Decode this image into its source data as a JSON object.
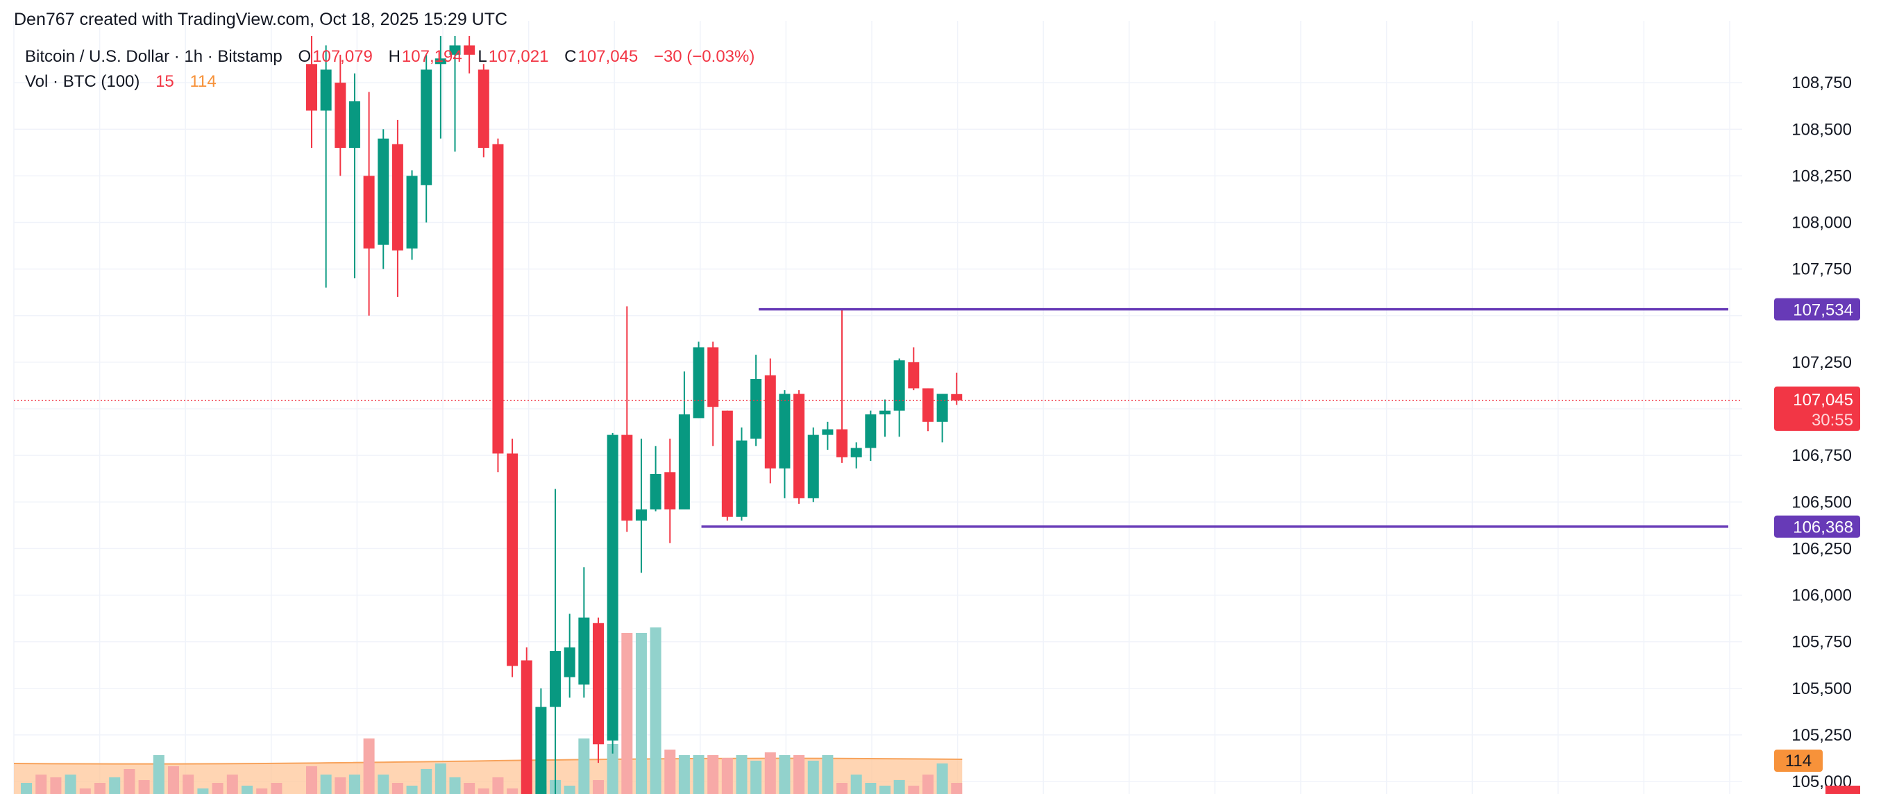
{
  "header": {
    "credit": "Den767 created with TradingView.com, Oct 18, 2025 15:29 UTC"
  },
  "legend": {
    "symbol": "Bitcoin / U.S. Dollar · 1h · Bitstamp",
    "o_label": "O",
    "o_value": "107,079",
    "h_label": "H",
    "h_value": "107,194",
    "l_label": "L",
    "l_value": "107,021",
    "c_label": "C",
    "c_value": "107,045",
    "change": "−30 (−0.03%)",
    "vol_label": "Vol · BTC (100)",
    "vol_value": "15",
    "vol_ma": "114"
  },
  "colors": {
    "up": "#089981",
    "down": "#f23645",
    "up_vol": "#92d2cc",
    "down_vol": "#f7a9a7",
    "vol_ma_area": "#ffc79a",
    "level_line": "#673ab7",
    "grid": "#f0f3fa"
  },
  "chart_data": {
    "type": "candlestick",
    "symbol": "BTCUSD",
    "timeframe": "1h",
    "exchange": "Bitstamp",
    "y_axis": {
      "ticks": [
        105000,
        105250,
        105500,
        105750,
        106000,
        106250,
        106500,
        106750,
        107000,
        107250,
        107500,
        107750,
        108000,
        108250,
        108500,
        108750
      ],
      "tick_labels": [
        "105,000",
        "105,250",
        "105,500",
        "105,750",
        "106,000",
        "106,250",
        "106,500",
        "106,750",
        "",
        "107,250",
        "",
        "107,750",
        "108,000",
        "108,250",
        "108,500",
        "108,750"
      ],
      "range": [
        104950,
        109000
      ]
    },
    "last_price": {
      "value": 107045,
      "label": "107,045",
      "countdown": "30:55"
    },
    "levels": [
      {
        "value": 107534,
        "label": "107,534",
        "from_bar": 31
      },
      {
        "value": 106368,
        "label": "106,368",
        "from_bar": 27
      }
    ],
    "volume_ma_label": "114",
    "candles": [
      [
        108850,
        109000,
        108400,
        108600
      ],
      [
        108600,
        108950,
        107650,
        108820
      ],
      [
        108750,
        108900,
        108250,
        108400
      ],
      [
        108400,
        108800,
        107700,
        108650
      ],
      [
        108250,
        108700,
        107500,
        107860
      ],
      [
        107880,
        108500,
        107750,
        108450
      ],
      [
        108420,
        108550,
        107600,
        107850
      ],
      [
        107860,
        108280,
        107800,
        108250
      ],
      [
        108200,
        108900,
        108000,
        108820
      ],
      [
        108850,
        109000,
        108450,
        108880
      ],
      [
        108900,
        109000,
        108380,
        108950
      ],
      [
        108950,
        109000,
        108800,
        108900
      ],
      [
        108820,
        108850,
        108350,
        108400
      ],
      [
        108420,
        108450,
        106660,
        106760
      ],
      [
        106760,
        106840,
        105560,
        105620
      ],
      [
        105650,
        105720,
        104800,
        104850
      ],
      [
        104900,
        105500,
        104800,
        105400
      ],
      [
        105400,
        106570,
        104900,
        105700
      ],
      [
        105560,
        105900,
        105450,
        105720
      ],
      [
        105520,
        106150,
        105450,
        105880
      ],
      [
        105850,
        105880,
        105100,
        105200
      ],
      [
        105220,
        106870,
        105150,
        106860
      ],
      [
        106860,
        107550,
        106340,
        106400
      ],
      [
        106400,
        106840,
        106120,
        106460
      ],
      [
        106460,
        106800,
        106450,
        106650
      ],
      [
        106660,
        106840,
        106280,
        106460
      ],
      [
        106460,
        107200,
        106460,
        106970
      ],
      [
        106950,
        107360,
        106950,
        107330
      ],
      [
        107330,
        107360,
        106800,
        107010
      ],
      [
        106990,
        106990,
        106400,
        106420
      ],
      [
        106420,
        106900,
        106400,
        106830
      ],
      [
        106840,
        107290,
        106800,
        107160
      ],
      [
        107180,
        107270,
        106600,
        106680
      ],
      [
        106680,
        107100,
        106520,
        107080
      ],
      [
        107080,
        107100,
        106490,
        106520
      ],
      [
        106520,
        106900,
        106500,
        106860
      ],
      [
        106860,
        106930,
        106780,
        106890
      ],
      [
        106890,
        107534,
        106710,
        106740
      ],
      [
        106740,
        106820,
        106680,
        106790
      ],
      [
        106790,
        106990,
        106720,
        106970
      ],
      [
        106970,
        107050,
        106850,
        106990
      ],
      [
        106990,
        107270,
        106850,
        107260
      ],
      [
        107250,
        107330,
        107100,
        107110
      ],
      [
        107110,
        107110,
        106880,
        106930
      ],
      [
        106930,
        107080,
        106820,
        107080
      ],
      [
        107079,
        107194,
        107021,
        107045
      ]
    ],
    "volumes": [
      10,
      7,
      6,
      7,
      20,
      7,
      4,
      3,
      9,
      11,
      6,
      4,
      2,
      6,
      2,
      7,
      3,
      5,
      3,
      20,
      5,
      18,
      58,
      58,
      60,
      16,
      14,
      14,
      14,
      13,
      14,
      12,
      15,
      14,
      14,
      12,
      14,
      4,
      7,
      4,
      3,
      5,
      3,
      7,
      11,
      4
    ]
  },
  "volume_raw": {
    "note_bars": "volume bars from left edge (older history), followed by visible candle volumes",
    "left_history": [
      4,
      7,
      6,
      7,
      2,
      4,
      6,
      9,
      5,
      14,
      10,
      7,
      2,
      4,
      7,
      3,
      2,
      4
    ]
  }
}
